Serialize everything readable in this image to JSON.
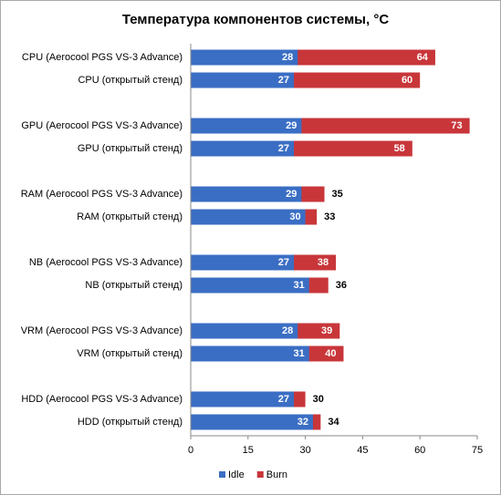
{
  "chart_data": {
    "type": "bar",
    "orientation": "horizontal",
    "title": "Температура компонентов системы, °C",
    "categories": [
      "CPU (Aerocool PGS VS-3 Advance)",
      "CPU (открытый стенд)",
      "GPU (Aerocool PGS VS-3 Advance)",
      "GPU (открытый стенд)",
      "RAM (Aerocool PGS VS-3 Advance)",
      "RAM (открытый стенд)",
      "NB (Aerocool PGS VS-3 Advance)",
      "NB (открытый стенд)",
      "VRM (Aerocool PGS VS-3 Advance)",
      "VRM (открытый стенд)",
      "HDD (Aerocool PGS VS-3 Advance)",
      "HDD (открытый стенд)"
    ],
    "series": [
      {
        "name": "Idle",
        "color": "#3a6ec4",
        "values": [
          28,
          27,
          29,
          27,
          29,
          30,
          27,
          31,
          28,
          31,
          27,
          32
        ]
      },
      {
        "name": "Burn",
        "color": "#c8363a",
        "values": [
          64,
          60,
          73,
          58,
          35,
          33,
          38,
          36,
          39,
          40,
          30,
          34
        ]
      }
    ],
    "xlim": [
      0,
      75
    ],
    "xticks": [
      0,
      15,
      30,
      45,
      60,
      75
    ],
    "legend": "bottom"
  }
}
